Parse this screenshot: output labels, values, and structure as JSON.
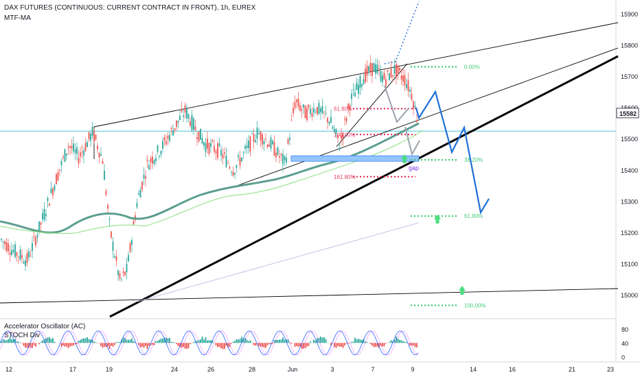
{
  "chart_data": {
    "type": "candlestick",
    "title": "DAX FUTURES (CONTINUOUS: CURRENT CONTRACT IN FRONT), 1h, EUREX",
    "indicator": "MTF-MA",
    "price_axis_ticks": [
      15900,
      15800,
      15700,
      15600,
      15500,
      15400,
      15300,
      15200,
      15100,
      15000
    ],
    "ylim": [
      14930,
      15930
    ],
    "current_price": "15582",
    "x_tick_labels": [
      "12",
      "17",
      "19",
      "24",
      "26",
      "28",
      "Jun",
      "3",
      "7",
      "9",
      "14",
      "16",
      "21",
      "23"
    ],
    "fib_levels": [
      {
        "label": "0.00%",
        "price": 15730,
        "color": "#22c55e"
      },
      {
        "label": "61.80%",
        "price": 15596,
        "color": "#e11d48"
      },
      {
        "label": "100.00%",
        "price": 15513,
        "color": "#e11d48"
      },
      {
        "label": "38.20%",
        "price": 15432,
        "color": "#22c55e"
      },
      {
        "label": "161.80%",
        "price": 15378,
        "color": "#e11d48"
      },
      {
        "label": "61.80%",
        "price": 15252,
        "color": "#22c55e"
      },
      {
        "label": "100.00%",
        "price": 14966,
        "color": "#22c55e"
      }
    ],
    "annotations": [
      "gap"
    ],
    "oscillator": {
      "labels": [
        "Accelerator Oscillator (AC)",
        "STOCH Div"
      ],
      "ticks": [
        80,
        40,
        0
      ],
      "ylim": [
        -5,
        100
      ]
    },
    "colors": {
      "up": "#26a69a",
      "down": "#ef5350",
      "trend": "#000000",
      "forecast": "#1e6fd9",
      "ma": "#5b9e8f",
      "ma_light": "#86e07a",
      "hline": "#4fc3d7"
    }
  }
}
